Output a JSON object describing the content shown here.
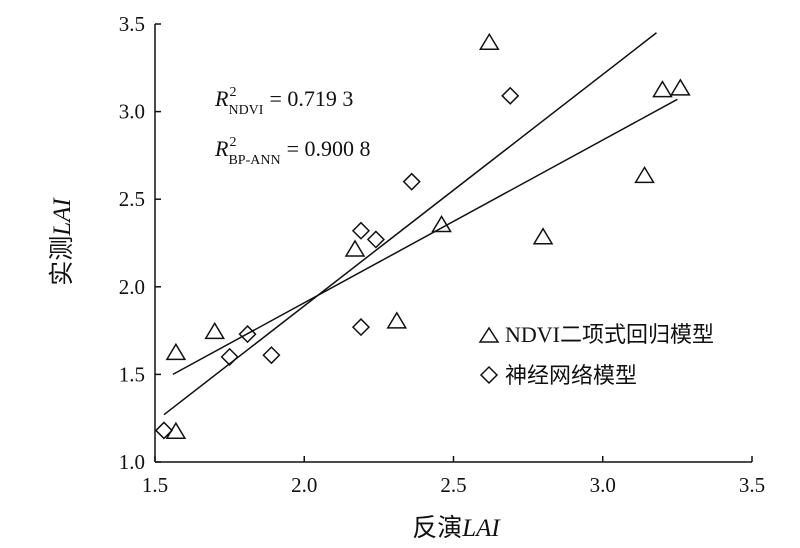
{
  "chart_data": {
    "type": "scatter",
    "xlabel": {
      "prefix": "反演",
      "italic": "LAI"
    },
    "ylabel": {
      "prefix": "实测",
      "italic": "LAI"
    },
    "xlim": [
      1.5,
      3.5
    ],
    "ylim": [
      1.0,
      3.5
    ],
    "x_ticks": [
      "1.5",
      "2.0",
      "2.5",
      "3.0",
      "3.5"
    ],
    "y_ticks": [
      "1.0",
      "1.5",
      "2.0",
      "2.5",
      "3.0",
      "3.5"
    ],
    "grid": false,
    "legend_position": "bottom-right",
    "series": [
      {
        "name": "NDVI二项式回归模型",
        "marker": "triangle",
        "points": [
          {
            "x": 1.57,
            "y": 1.62
          },
          {
            "x": 1.57,
            "y": 1.17
          },
          {
            "x": 1.7,
            "y": 1.74
          },
          {
            "x": 2.17,
            "y": 2.21
          },
          {
            "x": 2.31,
            "y": 1.8
          },
          {
            "x": 2.46,
            "y": 2.35
          },
          {
            "x": 2.62,
            "y": 3.39
          },
          {
            "x": 2.8,
            "y": 2.28
          },
          {
            "x": 3.14,
            "y": 2.63
          },
          {
            "x": 3.2,
            "y": 3.12
          },
          {
            "x": 3.26,
            "y": 3.13
          }
        ],
        "fit_line": {
          "x": [
            1.56,
            3.25
          ],
          "y": [
            1.5,
            3.07
          ]
        }
      },
      {
        "name": "神经网络模型",
        "marker": "diamond",
        "points": [
          {
            "x": 1.53,
            "y": 1.18
          },
          {
            "x": 1.75,
            "y": 1.6
          },
          {
            "x": 1.81,
            "y": 1.73
          },
          {
            "x": 1.89,
            "y": 1.61
          },
          {
            "x": 2.19,
            "y": 1.77
          },
          {
            "x": 2.19,
            "y": 2.32
          },
          {
            "x": 2.24,
            "y": 2.27
          },
          {
            "x": 2.36,
            "y": 2.6
          },
          {
            "x": 2.69,
            "y": 3.09
          }
        ],
        "fit_line": {
          "x": [
            1.53,
            3.18
          ],
          "y": [
            1.27,
            3.45
          ]
        }
      }
    ],
    "annotations": [
      {
        "symbol": "R",
        "sup": "2",
        "sub": "NDVI",
        "value": "= 0.719 3"
      },
      {
        "symbol": "R",
        "sup": "2",
        "sub": "BP-ANN",
        "value": "= 0.900 8"
      }
    ]
  }
}
